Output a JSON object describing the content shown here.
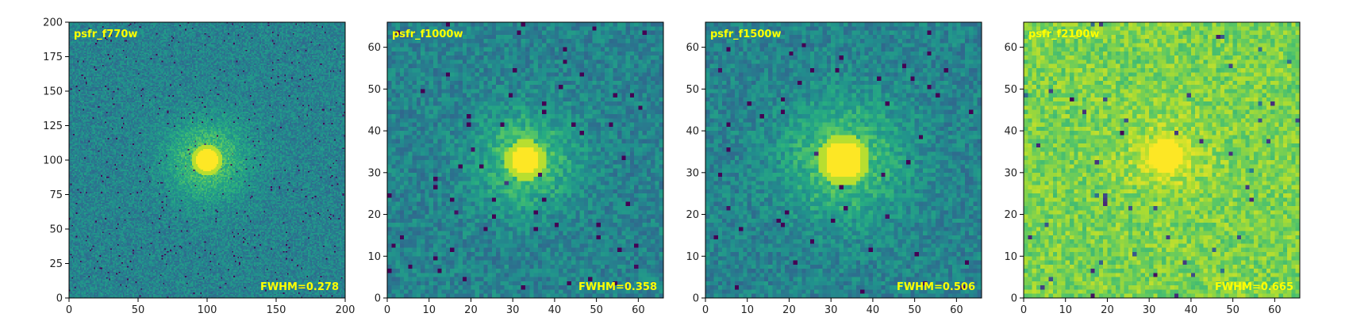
{
  "chart_data": [
    {
      "type": "heatmap",
      "title": "psfr_f770w",
      "annotation": "FWHM=0.278",
      "xlim": [
        0,
        200
      ],
      "ylim": [
        0,
        200
      ],
      "xticks": [
        0,
        50,
        100,
        150,
        200
      ],
      "yticks": [
        0,
        25,
        50,
        75,
        100,
        125,
        150,
        175,
        200
      ],
      "pixels": 200,
      "center": [
        100,
        100
      ],
      "background_level": 0.45,
      "core_radius": 8,
      "halo_radius": 20
    },
    {
      "type": "heatmap",
      "title": "psfr_f1000w",
      "annotation": "FWHM=0.358",
      "xlim": [
        0,
        66
      ],
      "ylim": [
        0,
        66
      ],
      "xticks": [
        0,
        10,
        20,
        30,
        40,
        50,
        60
      ],
      "yticks": [
        0,
        10,
        20,
        30,
        40,
        50,
        60
      ],
      "pixels": 66,
      "center": [
        33,
        33
      ],
      "background_level": 0.45,
      "core_radius": 3.5,
      "halo_radius": 8
    },
    {
      "type": "heatmap",
      "title": "psfr_f1500w",
      "annotation": "FWHM=0.506",
      "xlim": [
        0,
        66
      ],
      "ylim": [
        0,
        66
      ],
      "xticks": [
        0,
        10,
        20,
        30,
        40,
        50,
        60
      ],
      "yticks": [
        0,
        10,
        20,
        30,
        40,
        50,
        60
      ],
      "pixels": 66,
      "center": [
        33,
        33
      ],
      "background_level": 0.45,
      "core_radius": 4.5,
      "halo_radius": 10
    },
    {
      "type": "heatmap",
      "title": "psfr_f2100w",
      "annotation": "FWHM=0.665",
      "xlim": [
        0,
        66
      ],
      "ylim": [
        0,
        66
      ],
      "xticks": [
        0,
        10,
        20,
        30,
        40,
        50,
        60
      ],
      "yticks": [
        0,
        10,
        20,
        30,
        40,
        50,
        60
      ],
      "pixels": 66,
      "center": [
        34,
        34
      ],
      "background_level": 0.8,
      "core_radius": 4,
      "halo_radius": 7
    }
  ],
  "colors": {
    "label_color": "#ffff00",
    "colormap": "viridis"
  }
}
